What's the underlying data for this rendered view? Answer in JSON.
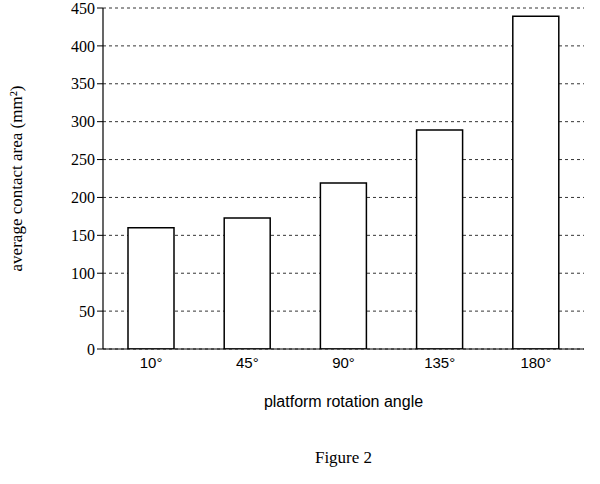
{
  "chart_data": {
    "type": "bar",
    "title": "Figure 2",
    "x_label": "platform rotation angle",
    "y_label": "average contact area (mm²)",
    "categories": [
      "10°",
      "45°",
      "90°",
      "135°",
      "180°"
    ],
    "values": [
      160,
      173,
      219,
      289,
      439
    ],
    "color": "#ffffff",
    "ylim": [
      0,
      450
    ],
    "yticks": [
      0,
      50,
      100,
      150,
      200,
      250,
      300,
      350,
      400,
      450
    ],
    "grid": true
  }
}
